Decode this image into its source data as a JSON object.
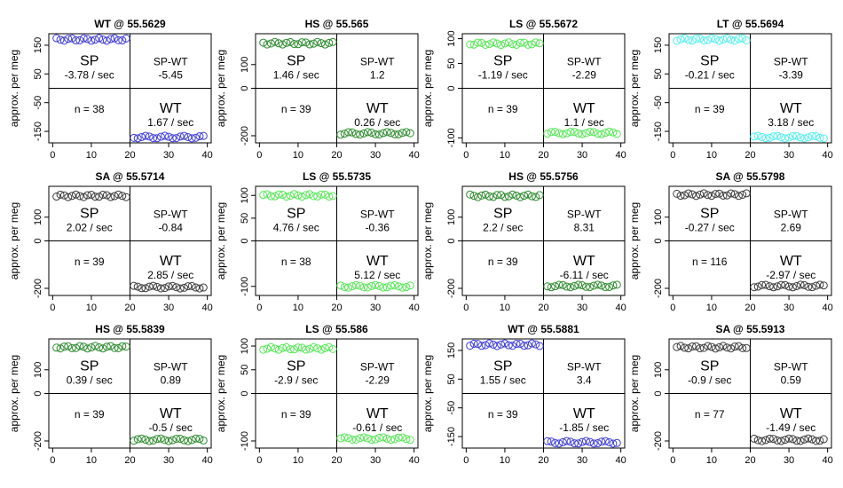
{
  "figure": {
    "ylabel": "approx. per meg",
    "x_ticks": [
      0,
      10,
      20,
      30,
      40
    ],
    "quadrant_labels": {
      "sp": "SP",
      "diff": "SP-WT",
      "wt": "WT"
    }
  },
  "colors": {
    "WT": "#3b3bd9",
    "HS": "#2b8a2b",
    "LS": "#55e655",
    "LT": "#55eeee",
    "SA": "#3a3a3a"
  },
  "chart_data": [
    {
      "type": "scatter",
      "title": "WT @ 55.5629",
      "gas": "WT",
      "ylim": [
        -190,
        190
      ],
      "y_ticks": [
        -150,
        -50,
        50,
        150
      ],
      "xlim": [
        -1,
        41
      ],
      "x_split": 20,
      "sp_level": 170,
      "wt_level": -170,
      "n_label": "n = 38",
      "sp_rate": "-3.78 / sec",
      "diff_value": "-5.45",
      "wt_rate": "1.67 / sec"
    },
    {
      "type": "scatter",
      "title": "HS @ 55.565",
      "gas": "HS",
      "ylim": [
        -230,
        230
      ],
      "y_ticks": [
        -200,
        0,
        100
      ],
      "xlim": [
        -1,
        41
      ],
      "x_split": 20,
      "sp_level": 190,
      "wt_level": -190,
      "n_label": "n = 39",
      "sp_rate": "1.46 / sec",
      "diff_value": "1.2",
      "wt_rate": "0.26 / sec"
    },
    {
      "type": "scatter",
      "title": "LS @ 55.5672",
      "gas": "LS",
      "ylim": [
        -110,
        110
      ],
      "y_ticks": [
        -100,
        0,
        50,
        100
      ],
      "xlim": [
        -1,
        41
      ],
      "x_split": 20,
      "sp_level": 90,
      "wt_level": -90,
      "n_label": "n = 39",
      "sp_rate": "-1.19 / sec",
      "diff_value": "-2.29",
      "wt_rate": "1.1 / sec"
    },
    {
      "type": "scatter",
      "title": "LT @ 55.5694",
      "gas": "LT",
      "ylim": [
        -190,
        190
      ],
      "y_ticks": [
        -150,
        -50,
        50,
        150
      ],
      "xlim": [
        -1,
        41
      ],
      "x_split": 20,
      "sp_level": 170,
      "wt_level": -170,
      "n_label": "n = 39",
      "sp_rate": "-0.21 / sec",
      "diff_value": "-3.39",
      "wt_rate": "3.18 / sec"
    },
    {
      "type": "scatter",
      "title": "SA @ 55.5714",
      "gas": "SA",
      "ylim": [
        -230,
        230
      ],
      "y_ticks": [
        -200,
        0,
        100
      ],
      "xlim": [
        -1,
        41
      ],
      "x_split": 20,
      "sp_level": 190,
      "wt_level": -195,
      "n_label": "n = 39",
      "sp_rate": "2.02 / sec",
      "diff_value": "-0.84",
      "wt_rate": "2.85 / sec"
    },
    {
      "type": "scatter",
      "title": "LS @ 55.5735",
      "gas": "LS",
      "ylim": [
        -120,
        120
      ],
      "y_ticks": [
        -100,
        0,
        50,
        100
      ],
      "xlim": [
        -1,
        41
      ],
      "x_split": 20,
      "sp_level": 100,
      "wt_level": -100,
      "n_label": "n = 38",
      "sp_rate": "4.76 / sec",
      "diff_value": "-0.36",
      "wt_rate": "5.12 / sec"
    },
    {
      "type": "scatter",
      "title": "HS @ 55.5756",
      "gas": "HS",
      "ylim": [
        -230,
        230
      ],
      "y_ticks": [
        -200,
        0,
        100
      ],
      "xlim": [
        -1,
        41
      ],
      "x_split": 20,
      "sp_level": 190,
      "wt_level": -190,
      "n_label": "n = 39",
      "sp_rate": "2.2 / sec",
      "diff_value": "8.31",
      "wt_rate": "-6.11 / sec"
    },
    {
      "type": "scatter",
      "title": "SA @ 55.5798",
      "gas": "SA",
      "ylim": [
        -230,
        230
      ],
      "y_ticks": [
        -200,
        0,
        100
      ],
      "xlim": [
        -1,
        41
      ],
      "x_split": 20,
      "sp_level": 195,
      "wt_level": -190,
      "n_label": "n = 116",
      "sp_rate": "-0.27 / sec",
      "diff_value": "2.69",
      "wt_rate": "-2.97 / sec"
    },
    {
      "type": "scatter",
      "title": "HS @ 55.5839",
      "gas": "HS",
      "ylim": [
        -230,
        230
      ],
      "y_ticks": [
        -200,
        0,
        100
      ],
      "xlim": [
        -1,
        41
      ],
      "x_split": 20,
      "sp_level": 195,
      "wt_level": -195,
      "n_label": "n = 39",
      "sp_rate": "0.39 / sec",
      "diff_value": "0.89",
      "wt_rate": "-0.5 / sec"
    },
    {
      "type": "scatter",
      "title": "LS @ 55.586",
      "gas": "LS",
      "ylim": [
        -115,
        115
      ],
      "y_ticks": [
        -100,
        0,
        50,
        100
      ],
      "xlim": [
        -1,
        41
      ],
      "x_split": 20,
      "sp_level": 95,
      "wt_level": -95,
      "n_label": "n = 39",
      "sp_rate": "-2.9 / sec",
      "diff_value": "-2.29",
      "wt_rate": "-0.61 / sec"
    },
    {
      "type": "scatter",
      "title": "WT @ 55.5881",
      "gas": "WT",
      "ylim": [
        -190,
        190
      ],
      "y_ticks": [
        -150,
        -50,
        50,
        150
      ],
      "xlim": [
        -1,
        41
      ],
      "x_split": 20,
      "sp_level": 170,
      "wt_level": -170,
      "n_label": "n = 39",
      "sp_rate": "1.55 / sec",
      "diff_value": "3.4",
      "wt_rate": "-1.85 / sec"
    },
    {
      "type": "scatter",
      "title": "SA @ 55.5913",
      "gas": "SA",
      "ylim": [
        -230,
        230
      ],
      "y_ticks": [
        -200,
        0,
        100
      ],
      "xlim": [
        -1,
        41
      ],
      "x_split": 20,
      "sp_level": 195,
      "wt_level": -195,
      "n_label": "n = 77",
      "sp_rate": "-0.9 / sec",
      "diff_value": "0.59",
      "wt_rate": "-1.49 / sec"
    }
  ]
}
